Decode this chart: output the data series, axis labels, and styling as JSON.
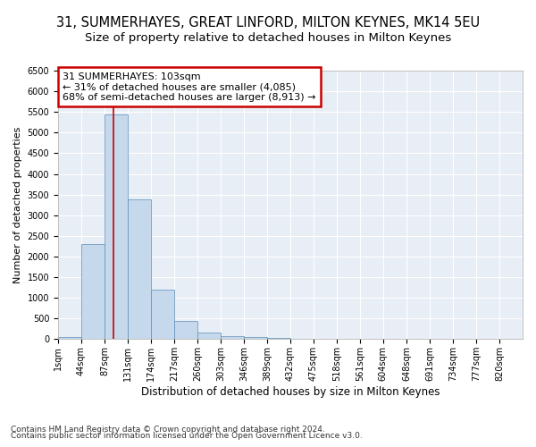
{
  "title1": "31, SUMMERHAYES, GREAT LINFORD, MILTON KEYNES, MK14 5EU",
  "title2": "Size of property relative to detached houses in Milton Keynes",
  "xlabel": "Distribution of detached houses by size in Milton Keynes",
  "ylabel": "Number of detached properties",
  "footnote1": "Contains HM Land Registry data © Crown copyright and database right 2024.",
  "footnote2": "Contains public sector information licensed under the Open Government Licence v3.0.",
  "annotation_title": "31 SUMMERHAYES: 103sqm",
  "annotation_line1": "← 31% of detached houses are smaller (4,085)",
  "annotation_line2": "68% of semi-detached houses are larger (8,913) →",
  "property_size": 103,
  "bar_bins": [
    1,
    44,
    87,
    131,
    174,
    217,
    260,
    303,
    346,
    389,
    432,
    475,
    518,
    561,
    604,
    648,
    691,
    734,
    777,
    820,
    863
  ],
  "bar_heights": [
    50,
    2300,
    5450,
    3380,
    1200,
    450,
    150,
    80,
    50,
    20,
    10,
    5,
    3,
    2,
    1,
    0,
    0,
    0,
    0,
    0
  ],
  "bar_color": "#c6d9ec",
  "bar_edge_color": "#5b8db8",
  "vline_color": "#cc0000",
  "vline_x": 103,
  "ylim": [
    0,
    6500
  ],
  "bg_color": "#e8eef5",
  "grid_color": "#ffffff",
  "annotation_box_color": "#cc0000",
  "title1_fontsize": 10.5,
  "title2_fontsize": 9.5,
  "xlabel_fontsize": 8.5,
  "ylabel_fontsize": 8,
  "tick_fontsize": 7,
  "annot_fontsize": 8,
  "footnote_fontsize": 6.5
}
